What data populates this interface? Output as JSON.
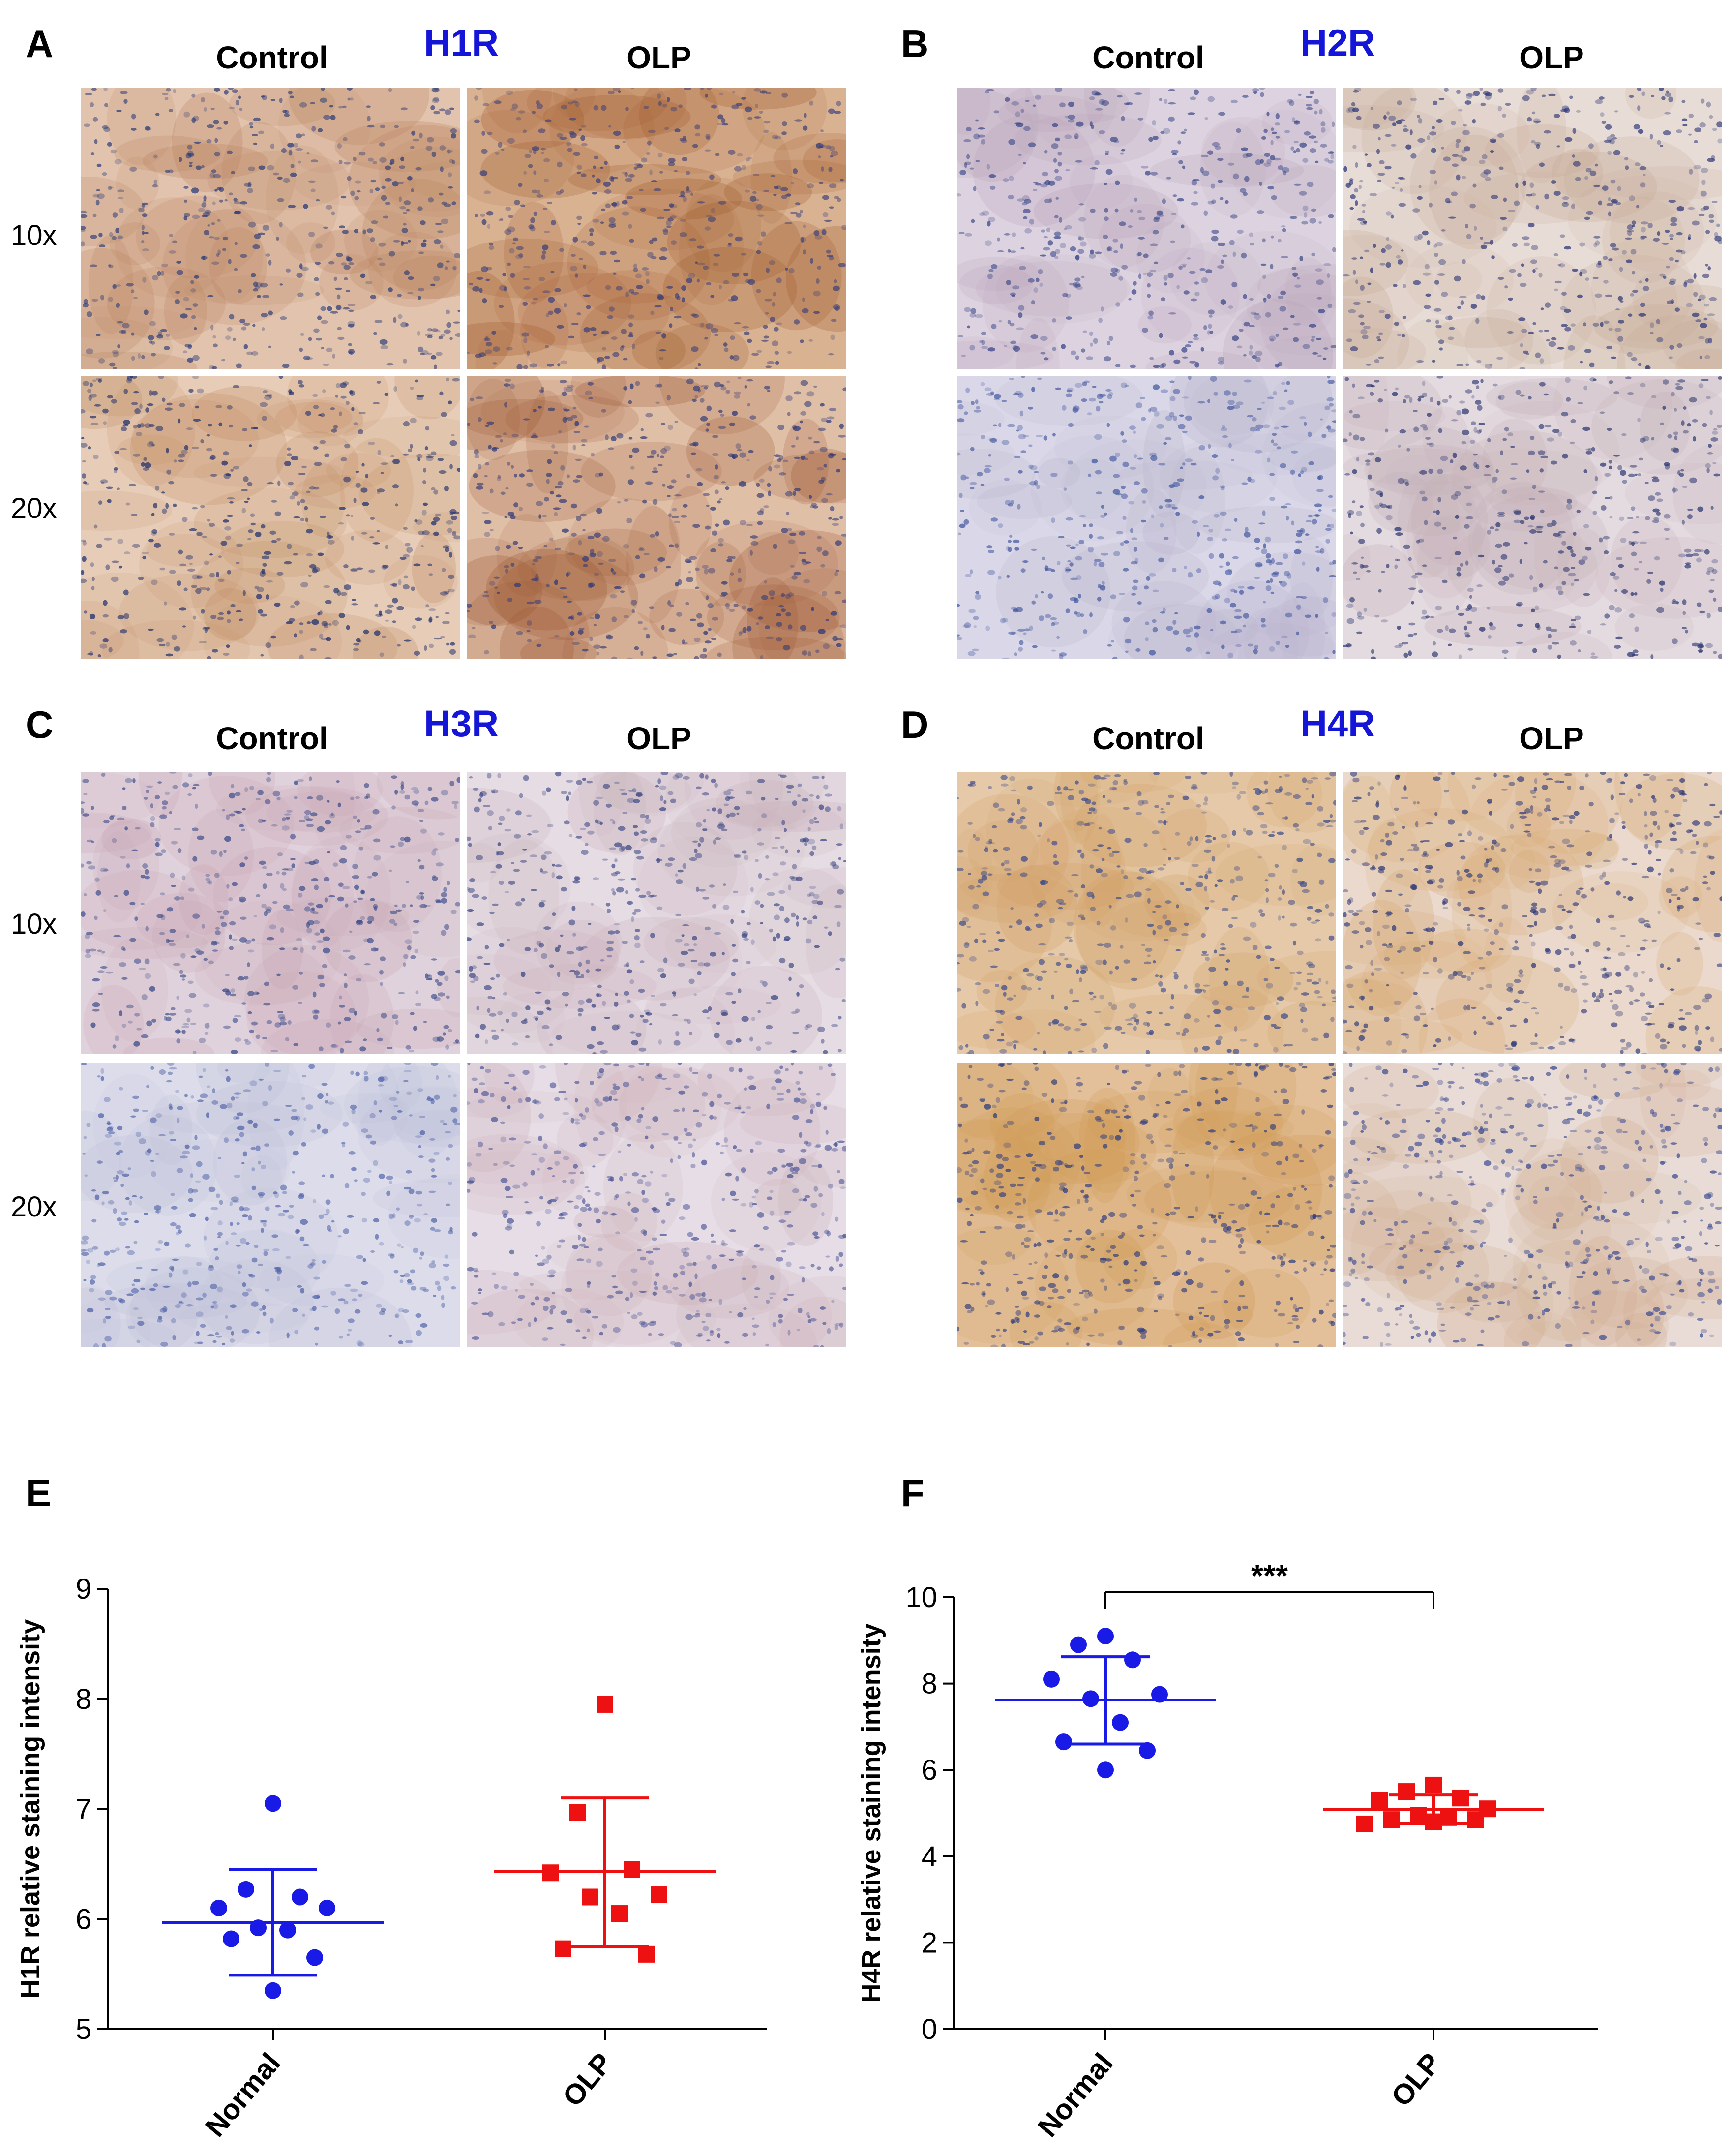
{
  "panels": [
    {
      "letter": "A",
      "receptor": "H1R",
      "control_label": "Control",
      "olp_label": "OLP",
      "mag_top": "10x",
      "mag_bottom": "20x"
    },
    {
      "letter": "B",
      "receptor": "H2R",
      "control_label": "Control",
      "olp_label": "OLP"
    },
    {
      "letter": "C",
      "receptor": "H3R",
      "control_label": "Control",
      "olp_label": "OLP",
      "mag_top": "10x",
      "mag_bottom": "20x"
    },
    {
      "letter": "D",
      "receptor": "H4R",
      "control_label": "Control",
      "olp_label": "OLP"
    }
  ],
  "chart_panels": [
    {
      "letter": "E"
    },
    {
      "letter": "F"
    }
  ],
  "colors": {
    "normal": "#1a1ae6",
    "olp": "#ee1111",
    "receptor_text": "#1515d8"
  },
  "chart_data": [
    {
      "type": "scatter",
      "panel": "E",
      "ylabel": "H1R relative staining intensity",
      "xlabel": "",
      "categories": [
        "Normal",
        "OLP"
      ],
      "ylim": [
        5,
        9
      ],
      "yticks": [
        5,
        6,
        7,
        8,
        9
      ],
      "series": [
        {
          "category": "Normal",
          "marker": "circle",
          "color": "#1a1ae6",
          "values": [
            7.05,
            6.27,
            6.2,
            6.1,
            6.1,
            5.92,
            5.9,
            5.82,
            5.65,
            5.35
          ],
          "mean": 5.97,
          "sd_upper": 6.45,
          "sd_lower": 5.49
        },
        {
          "category": "OLP",
          "marker": "square",
          "color": "#ee1111",
          "values": [
            7.95,
            6.97,
            6.45,
            6.42,
            6.22,
            6.2,
            6.05,
            5.73,
            5.68
          ],
          "mean": 6.43,
          "sd_upper": 7.1,
          "sd_lower": 5.75
        }
      ],
      "significance": null
    },
    {
      "type": "scatter",
      "panel": "F",
      "ylabel": "H4R relative staining intensity",
      "xlabel": "",
      "categories": [
        "Normal",
        "OLP"
      ],
      "ylim": [
        0,
        10
      ],
      "yticks": [
        0,
        2,
        4,
        6,
        8,
        10
      ],
      "series": [
        {
          "category": "Normal",
          "marker": "circle",
          "color": "#1a1ae6",
          "values": [
            9.1,
            8.9,
            8.55,
            8.1,
            7.75,
            7.65,
            7.1,
            6.65,
            6.45,
            6.0
          ],
          "mean": 7.62,
          "sd_upper": 8.62,
          "sd_lower": 6.6
        },
        {
          "category": "OLP",
          "marker": "square",
          "color": "#ee1111",
          "values": [
            5.65,
            5.5,
            5.35,
            5.3,
            5.1,
            4.95,
            4.9,
            4.85,
            4.85,
            4.8,
            4.75
          ],
          "mean": 5.08,
          "sd_upper": 5.42,
          "sd_lower": 4.75
        }
      ],
      "significance": "***"
    }
  ]
}
